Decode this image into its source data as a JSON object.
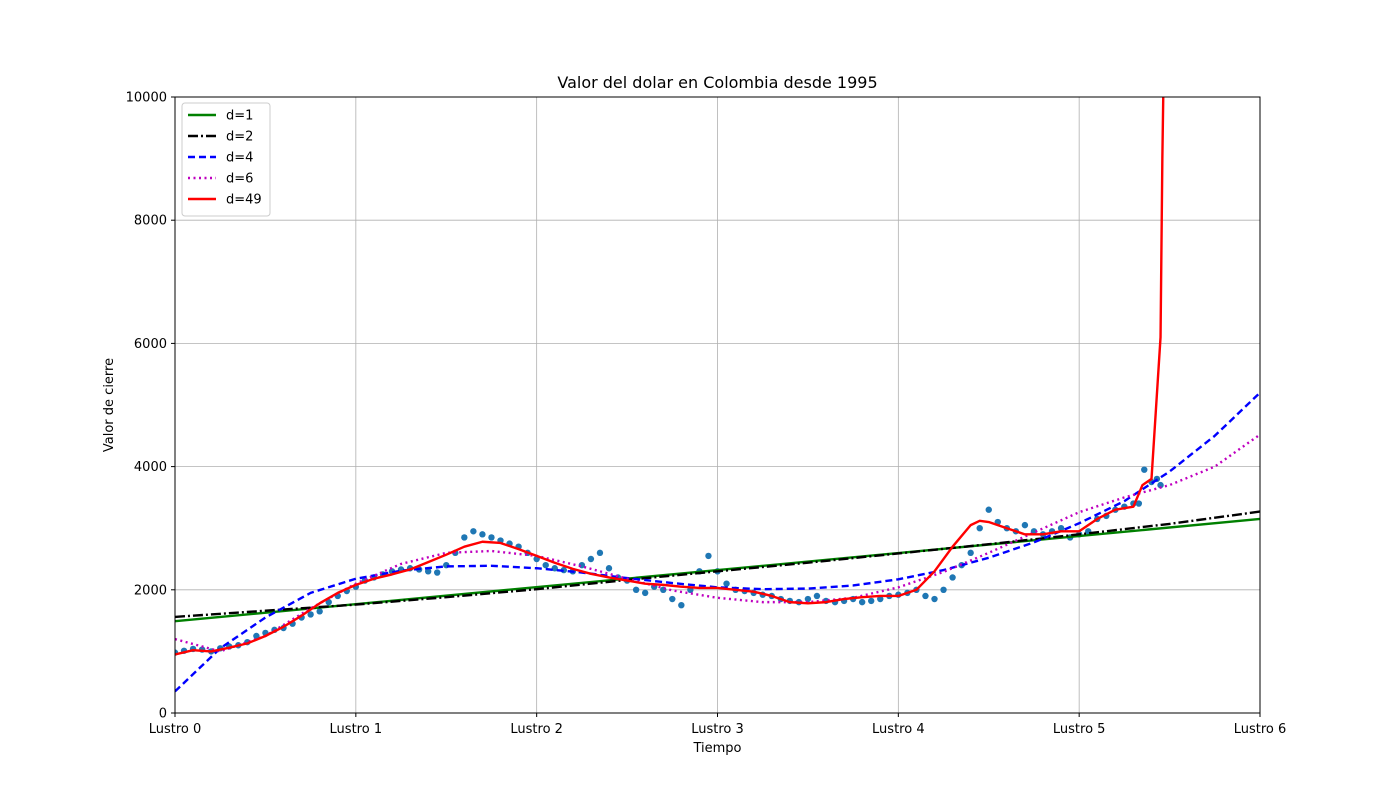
{
  "chart_data": {
    "type": "line",
    "title": "Valor del dolar en Colombia desde 1995",
    "xlabel": "Tiempo",
    "ylabel": "Valor de cierre",
    "xlim": [
      0,
      6
    ],
    "ylim": [
      0,
      10000
    ],
    "xticks": [
      0,
      1,
      2,
      3,
      4,
      5,
      6
    ],
    "xtick_labels": [
      "Lustro 0",
      "Lustro 1",
      "Lustro 2",
      "Lustro 3",
      "Lustro 4",
      "Lustro 5",
      "Lustro 6"
    ],
    "yticks": [
      0,
      2000,
      4000,
      6000,
      8000,
      10000
    ],
    "ytick_labels": [
      "0",
      "2000",
      "4000",
      "6000",
      "8000",
      "10000"
    ],
    "grid": true,
    "legend_position": "upper-left",
    "scatter_series": {
      "color": "#1f77b4",
      "x": [
        0.0,
        0.05,
        0.1,
        0.15,
        0.2,
        0.25,
        0.3,
        0.35,
        0.4,
        0.45,
        0.5,
        0.55,
        0.6,
        0.65,
        0.7,
        0.75,
        0.8,
        0.85,
        0.9,
        0.95,
        1.0,
        1.05,
        1.1,
        1.15,
        1.2,
        1.25,
        1.3,
        1.35,
        1.4,
        1.45,
        1.5,
        1.55,
        1.6,
        1.65,
        1.7,
        1.75,
        1.8,
        1.85,
        1.9,
        1.95,
        2.0,
        2.05,
        2.1,
        2.15,
        2.2,
        2.25,
        2.3,
        2.35,
        2.4,
        2.45,
        2.5,
        2.55,
        2.6,
        2.65,
        2.7,
        2.75,
        2.8,
        2.85,
        2.9,
        2.95,
        3.0,
        3.05,
        3.1,
        3.15,
        3.2,
        3.25,
        3.3,
        3.35,
        3.4,
        3.45,
        3.5,
        3.55,
        3.6,
        3.65,
        3.7,
        3.75,
        3.8,
        3.85,
        3.9,
        3.95,
        4.0,
        4.05,
        4.1,
        4.15,
        4.2,
        4.25,
        4.3,
        4.35,
        4.4,
        4.45,
        4.5,
        4.55,
        4.6,
        4.65,
        4.7,
        4.75,
        4.8,
        4.85,
        4.9,
        4.95,
        5.0,
        5.05,
        5.1,
        5.15,
        5.2,
        5.25,
        5.3,
        5.33,
        5.36,
        5.4,
        5.43,
        5.45
      ],
      "y": [
        980,
        1010,
        1040,
        1030,
        1000,
        1050,
        1080,
        1100,
        1150,
        1250,
        1300,
        1350,
        1380,
        1450,
        1550,
        1600,
        1650,
        1800,
        1900,
        1980,
        2050,
        2150,
        2200,
        2250,
        2300,
        2330,
        2350,
        2330,
        2300,
        2280,
        2400,
        2600,
        2850,
        2950,
        2900,
        2850,
        2800,
        2750,
        2700,
        2600,
        2500,
        2400,
        2350,
        2320,
        2300,
        2400,
        2500,
        2600,
        2350,
        2200,
        2150,
        2000,
        1950,
        2050,
        2000,
        1850,
        1750,
        2000,
        2300,
        2550,
        2300,
        2100,
        2000,
        1980,
        1950,
        1920,
        1900,
        1850,
        1820,
        1800,
        1850,
        1900,
        1820,
        1800,
        1820,
        1850,
        1800,
        1820,
        1850,
        1900,
        1920,
        1950,
        2000,
        1900,
        1850,
        2000,
        2200,
        2400,
        2600,
        3000,
        3300,
        3100,
        3000,
        2950,
        3050,
        2950,
        2900,
        2950,
        3000,
        2850,
        2900,
        2950,
        3150,
        3200,
        3300,
        3350,
        3400,
        3400,
        3950,
        3750,
        3800,
        3700
      ]
    },
    "series": [
      {
        "name": "d=1",
        "color": "#008000",
        "dash": "solid",
        "x": [
          0,
          6
        ],
        "y": [
          1490,
          3150
        ]
      },
      {
        "name": "d=2",
        "color": "#000000",
        "dash": "dashdot",
        "x": [
          0,
          0.5,
          1,
          1.5,
          2,
          2.5,
          3,
          3.5,
          4,
          4.5,
          5,
          5.5,
          6
        ],
        "y": [
          1560,
          1660,
          1760,
          1880,
          2010,
          2160,
          2300,
          2440,
          2590,
          2740,
          2900,
          3070,
          3270
        ]
      },
      {
        "name": "d=4",
        "color": "#0000ff",
        "dash": "dashed",
        "x": [
          0,
          0.25,
          0.5,
          0.75,
          1,
          1.25,
          1.5,
          1.75,
          2,
          2.25,
          2.5,
          2.75,
          3,
          3.25,
          3.5,
          3.75,
          4,
          4.25,
          4.5,
          4.75,
          5,
          5.25,
          5.5,
          5.75,
          6
        ],
        "y": [
          350,
          1050,
          1550,
          1950,
          2180,
          2310,
          2380,
          2390,
          2350,
          2280,
          2190,
          2110,
          2040,
          2010,
          2020,
          2070,
          2170,
          2320,
          2520,
          2770,
          3080,
          3440,
          3920,
          4500,
          5200
        ]
      },
      {
        "name": "d=6",
        "color": "#bf00bf",
        "dash": "dotted",
        "x": [
          0,
          0.25,
          0.5,
          0.75,
          1,
          1.25,
          1.5,
          1.75,
          2,
          2.25,
          2.5,
          2.75,
          3,
          3.25,
          3.5,
          3.75,
          4,
          4.25,
          4.5,
          4.75,
          5,
          5.25,
          5.5,
          5.75,
          6
        ],
        "y": [
          1200,
          1000,
          1250,
          1700,
          2100,
          2420,
          2600,
          2630,
          2550,
          2380,
          2180,
          1990,
          1870,
          1800,
          1800,
          1870,
          2040,
          2290,
          2600,
          2930,
          3260,
          3500,
          3700,
          4000,
          4520
        ]
      },
      {
        "name": "d=49",
        "color": "#ff0000",
        "dash": "solid",
        "x": [
          0,
          0.1,
          0.2,
          0.3,
          0.4,
          0.5,
          0.6,
          0.7,
          0.8,
          0.9,
          1.0,
          1.1,
          1.2,
          1.3,
          1.4,
          1.5,
          1.6,
          1.7,
          1.8,
          1.9,
          2.0,
          2.1,
          2.2,
          2.3,
          2.4,
          2.5,
          2.6,
          2.7,
          2.8,
          2.9,
          3.0,
          3.1,
          3.2,
          3.3,
          3.4,
          3.5,
          3.6,
          3.7,
          3.8,
          3.9,
          4.0,
          4.1,
          4.2,
          4.3,
          4.4,
          4.45,
          4.5,
          4.6,
          4.7,
          4.8,
          4.9,
          5.0,
          5.1,
          5.2,
          5.3,
          5.35,
          5.4,
          5.45,
          5.46,
          5.465
        ],
        "y": [
          950,
          1020,
          1000,
          1060,
          1130,
          1250,
          1400,
          1580,
          1780,
          1950,
          2080,
          2180,
          2250,
          2330,
          2450,
          2570,
          2700,
          2780,
          2760,
          2660,
          2550,
          2440,
          2340,
          2260,
          2200,
          2150,
          2100,
          2080,
          2050,
          2030,
          2030,
          2000,
          1970,
          1900,
          1800,
          1780,
          1800,
          1850,
          1880,
          1900,
          1900,
          2000,
          2300,
          2700,
          3050,
          3120,
          3100,
          3000,
          2900,
          2900,
          2950,
          2950,
          3150,
          3300,
          3350,
          3700,
          3800,
          6100,
          9000,
          10000
        ]
      }
    ]
  }
}
